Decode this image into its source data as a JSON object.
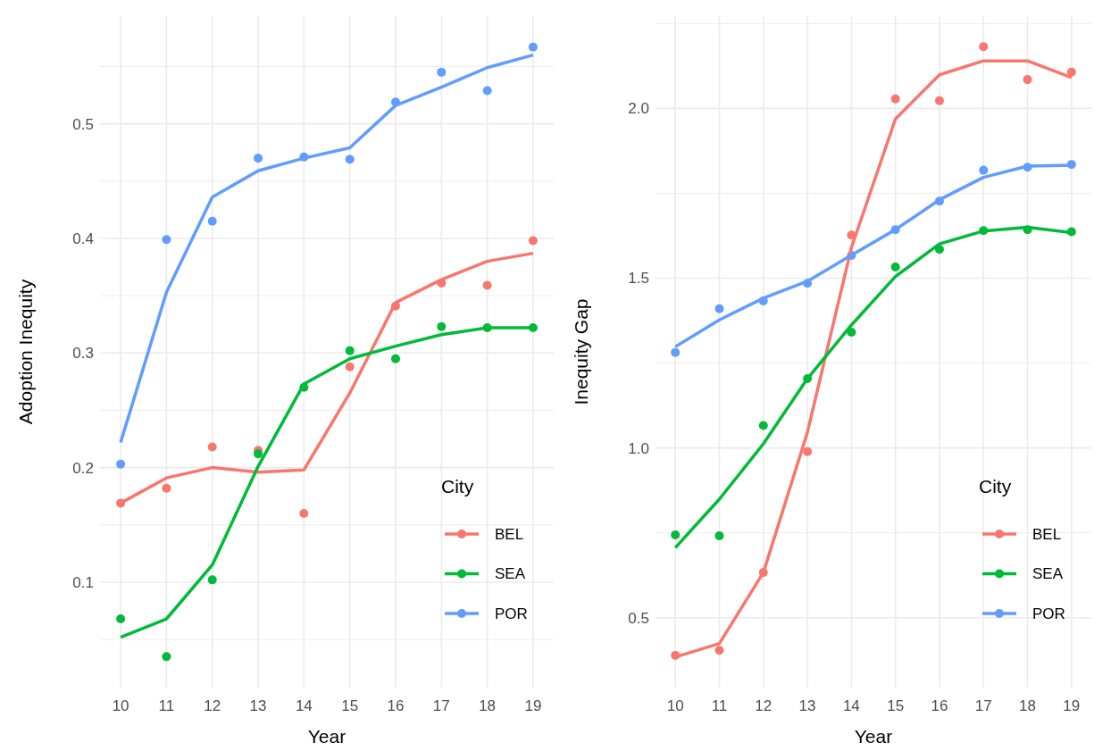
{
  "chart_data": [
    {
      "type": "line",
      "xlabel": "Year",
      "ylabel": "Adoption Inequity",
      "legend_title": "City",
      "legend": "bottom right",
      "grid": true,
      "line_style": "solid",
      "categories": [
        "10",
        "11",
        "12",
        "13",
        "14",
        "15",
        "16",
        "17",
        "18",
        "19"
      ],
      "ylim": [
        0.008,
        0.594
      ],
      "yticks": [
        {
          "value": 0.05,
          "label": null
        },
        0.1,
        {
          "value": 0.15,
          "label": null
        },
        0.2,
        {
          "value": 0.25,
          "label": null
        },
        0.3,
        {
          "value": 0.35,
          "label": null
        },
        0.4,
        {
          "value": 0.45,
          "label": null
        },
        0.5,
        {
          "value": 0.55,
          "label": null
        }
      ],
      "series": [
        {
          "type": "scatter",
          "color": "#f8766d",
          "values": [
            0.169,
            0.182,
            0.218,
            0.215,
            0.16,
            0.288,
            0.341,
            0.361,
            0.359,
            0.398
          ]
        },
        {
          "type": "scatter",
          "color": "#00ba38",
          "values": [
            0.068,
            0.035,
            0.102,
            0.212,
            0.27,
            0.302,
            0.295,
            0.323,
            0.322,
            0.322
          ]
        },
        {
          "type": "scatter",
          "color": "#619cff",
          "values": [
            0.203,
            0.399,
            0.415,
            0.47,
            0.471,
            0.469,
            0.519,
            0.545,
            0.529,
            0.567
          ]
        },
        {
          "name": "BEL",
          "color": "#f8766d",
          "values": [
            0.169,
            0.191,
            0.2,
            0.196,
            0.198,
            0.265,
            0.344,
            0.364,
            0.38,
            0.387
          ]
        },
        {
          "name": "SEA",
          "color": "#00ba38",
          "values": [
            0.052,
            0.068,
            0.115,
            0.201,
            0.273,
            0.295,
            0.306,
            0.316,
            0.322,
            0.322
          ]
        },
        {
          "name": "POR",
          "color": "#619cff",
          "values": [
            0.222,
            0.353,
            0.436,
            0.459,
            0.47,
            0.479,
            0.516,
            0.532,
            0.549,
            0.56
          ]
        }
      ]
    },
    {
      "type": "line",
      "xlabel": "Year",
      "ylabel": "Inequity Gap",
      "legend_title": "City",
      "legend": "bottom right",
      "grid": true,
      "line_style": "solid",
      "categories": [
        "10",
        "11",
        "12",
        "13",
        "14",
        "15",
        "16",
        "17",
        "18",
        "19"
      ],
      "ylim": [
        0.294,
        2.272
      ],
      "yticks": [
        {
          "value": 0.5,
          "label": "0.5"
        },
        {
          "value": 0.75,
          "label": null
        },
        {
          "value": 1,
          "label": "1.0"
        },
        {
          "value": 1.25,
          "label": null
        },
        {
          "value": 1.5,
          "label": "1.5"
        },
        {
          "value": 1.75,
          "label": null
        },
        {
          "value": 2,
          "label": "2.0"
        },
        {
          "value": 2.25,
          "label": null
        }
      ],
      "series": [
        {
          "type": "scatter",
          "color": "#f8766d",
          "values": [
            0.389,
            0.404,
            0.633,
            0.989,
            1.627,
            2.028,
            2.023,
            2.182,
            2.085,
            2.107
          ]
        },
        {
          "type": "scatter",
          "color": "#00ba38",
          "values": [
            0.744,
            0.741,
            1.066,
            1.204,
            1.341,
            1.533,
            1.585,
            1.64,
            1.643,
            1.637
          ]
        },
        {
          "type": "scatter",
          "color": "#619cff",
          "values": [
            1.281,
            1.41,
            1.433,
            1.485,
            1.567,
            1.643,
            1.727,
            1.818,
            1.827,
            1.835
          ]
        },
        {
          "name": "BEL",
          "color": "#f8766d",
          "values": [
            0.384,
            0.424,
            0.633,
            1.046,
            1.59,
            1.969,
            2.099,
            2.14,
            2.14,
            2.091
          ]
        },
        {
          "name": "SEA",
          "color": "#00ba38",
          "values": [
            0.706,
            0.849,
            1.012,
            1.204,
            1.362,
            1.505,
            1.601,
            1.639,
            1.65,
            1.634
          ]
        },
        {
          "name": "POR",
          "color": "#619cff",
          "values": [
            1.298,
            1.377,
            1.441,
            1.491,
            1.568,
            1.643,
            1.731,
            1.797,
            1.83,
            1.833
          ]
        }
      ]
    }
  ]
}
